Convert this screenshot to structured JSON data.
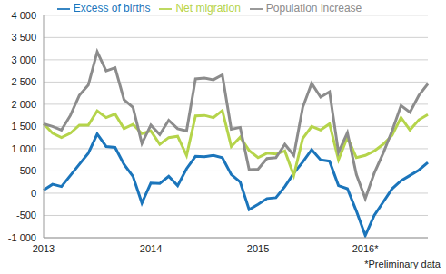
{
  "chart_data": {
    "type": "line",
    "annotation": "*Preliminary data",
    "x": [
      "2013",
      null,
      null,
      null,
      null,
      null,
      null,
      null,
      null,
      null,
      null,
      null,
      "2014",
      null,
      null,
      null,
      null,
      null,
      null,
      null,
      null,
      null,
      null,
      null,
      "2015",
      null,
      null,
      null,
      null,
      null,
      null,
      null,
      null,
      null,
      null,
      null,
      "2016*",
      null,
      null,
      null,
      null,
      null,
      null,
      null
    ],
    "series": [
      {
        "name": "Excess of births",
        "color": "#1b75bb",
        "values": [
          70,
          200,
          150,
          400,
          650,
          900,
          1330,
          1050,
          1030,
          650,
          380,
          -220,
          230,
          220,
          380,
          170,
          550,
          830,
          820,
          850,
          800,
          420,
          250,
          -370,
          -250,
          -120,
          -100,
          150,
          450,
          700,
          980,
          750,
          720,
          170,
          100,
          -400,
          -950,
          -500,
          -200,
          100,
          280,
          400,
          520,
          690
        ]
      },
      {
        "name": "Net migration",
        "color": "#b5d44b",
        "values": [
          1560,
          1350,
          1250,
          1350,
          1530,
          1530,
          1850,
          1700,
          1780,
          1450,
          1550,
          1340,
          1400,
          1100,
          1250,
          1280,
          850,
          1740,
          1750,
          1700,
          1860,
          1050,
          1260,
          960,
          800,
          900,
          880,
          950,
          400,
          1230,
          1500,
          1420,
          1560,
          750,
          1260,
          800,
          850,
          950,
          1100,
          1300,
          1700,
          1420,
          1650,
          1770
        ]
      },
      {
        "name": "Population increase",
        "color": "#8c8c8c",
        "values": [
          1560,
          1500,
          1420,
          1750,
          2200,
          2430,
          3180,
          2750,
          2820,
          2100,
          1930,
          1120,
          1530,
          1320,
          1640,
          1450,
          1400,
          2570,
          2590,
          2550,
          2660,
          1440,
          1480,
          530,
          540,
          780,
          800,
          1100,
          850,
          1930,
          2470,
          2160,
          2280,
          920,
          1360,
          420,
          -120,
          450,
          900,
          1400,
          1970,
          1820,
          2200,
          2460
        ]
      }
    ],
    "ylim": [
      -1000,
      4000
    ],
    "yticks": [
      {
        "value": -1000,
        "label": "-1 000"
      },
      -500,
      0,
      500,
      {
        "value": 1000,
        "label": "1 000"
      },
      {
        "value": 1500,
        "label": "1 500"
      },
      {
        "value": 2000,
        "label": "2 000"
      },
      {
        "value": 2500,
        "label": "2 500"
      },
      {
        "value": 3000,
        "label": "3 000"
      },
      {
        "value": 3500,
        "label": "3 500"
      },
      {
        "value": 4000,
        "label": "4 000"
      }
    ],
    "grid": true,
    "legend": "top"
  }
}
